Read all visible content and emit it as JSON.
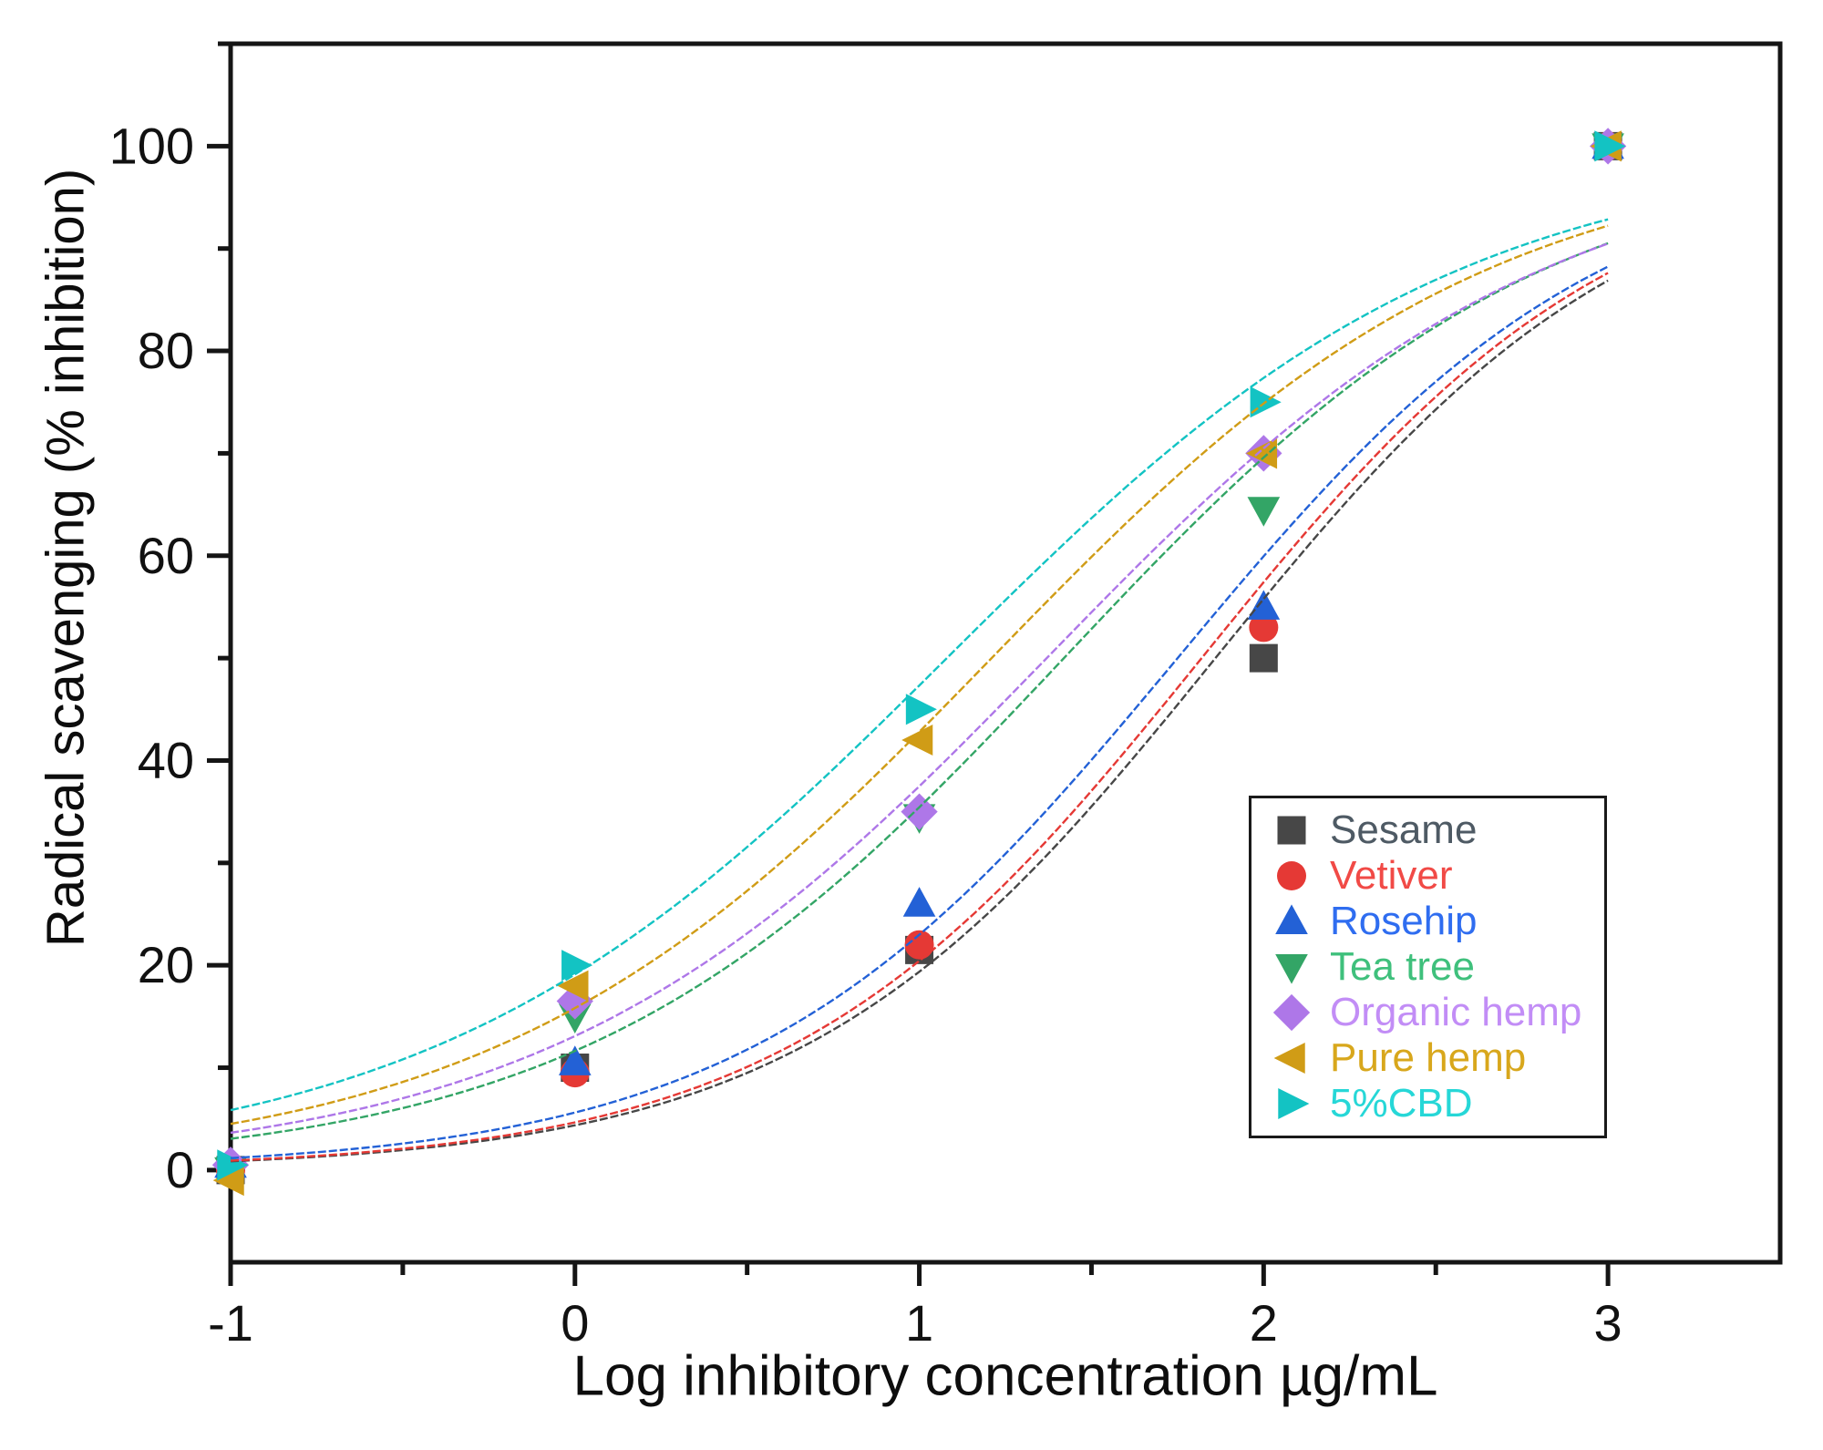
{
  "chart_data": {
    "type": "scatter",
    "title": "",
    "xlabel": "Log inhibitory concentration µg/mL",
    "ylabel": "Radical scavenging (% inhibition)",
    "xlim": [
      -1,
      3.5
    ],
    "ylim": [
      -9,
      110
    ],
    "x_major_ticks": [
      -1,
      0,
      1,
      2,
      3
    ],
    "x_minor_ticks": [
      -0.5,
      0.5,
      1.5,
      2.5
    ],
    "y_major_ticks": [
      0,
      20,
      40,
      60,
      80,
      100
    ],
    "y_minor_ticks": [
      10,
      30,
      50,
      70,
      90,
      110
    ],
    "grid": false,
    "axis_color": "#151515",
    "legend_position": "inside lower-right",
    "x": [
      -1,
      0,
      1,
      2,
      3
    ],
    "series": [
      {
        "name": "Sesame",
        "marker": "square",
        "color": "#474747",
        "text_color": "#4e5a64",
        "values": [
          0,
          10,
          21.5,
          50,
          100
        ],
        "fit": {
          "top": 100,
          "bottom": 0,
          "logIC50": 1.86,
          "hill": 0.72
        }
      },
      {
        "name": "Vetiver",
        "marker": "circle",
        "color": "#e53935",
        "text_color": "#f14a46",
        "values": [
          0,
          9.5,
          22,
          53,
          100
        ],
        "fit": {
          "top": 100,
          "bottom": 0,
          "logIC50": 1.82,
          "hill": 0.72
        }
      },
      {
        "name": "Rosehip",
        "marker": "triangle-up",
        "color": "#2361d6",
        "text_color": "#2f6df0",
        "values": [
          0.5,
          10.5,
          26,
          55,
          100
        ],
        "fit": {
          "top": 100,
          "bottom": 0,
          "logIC50": 1.75,
          "hill": 0.7
        }
      },
      {
        "name": "Tea tree",
        "marker": "triangle-down",
        "color": "#33a566",
        "text_color": "#3fc07c",
        "values": [
          0,
          15,
          34.5,
          64.5,
          100
        ],
        "fit": {
          "top": 100,
          "bottom": 0,
          "logIC50": 1.42,
          "hill": 0.62
        }
      },
      {
        "name": "Organic hemp",
        "marker": "diamond",
        "color": "#ae77e8",
        "text_color": "#c28df6",
        "values": [
          0.5,
          16.5,
          35,
          70,
          100
        ],
        "fit": {
          "top": 100,
          "bottom": 0,
          "logIC50": 1.37,
          "hill": 0.6
        }
      },
      {
        "name": "Pure hemp",
        "marker": "triangle-left",
        "color": "#d09c16",
        "text_color": "#d8a71c",
        "values": [
          -1,
          18,
          42,
          70,
          100
        ],
        "fit": {
          "top": 100,
          "bottom": 0,
          "logIC50": 1.21,
          "hill": 0.6
        }
      },
      {
        "name": "5%CBD",
        "marker": "triangle-right",
        "color": "#13c3c3",
        "text_color": "#26d7d7",
        "values": [
          0.5,
          20,
          45,
          75,
          100
        ],
        "fit": {
          "top": 100,
          "bottom": 0,
          "logIC50": 1.08,
          "hill": 0.58
        }
      }
    ]
  }
}
